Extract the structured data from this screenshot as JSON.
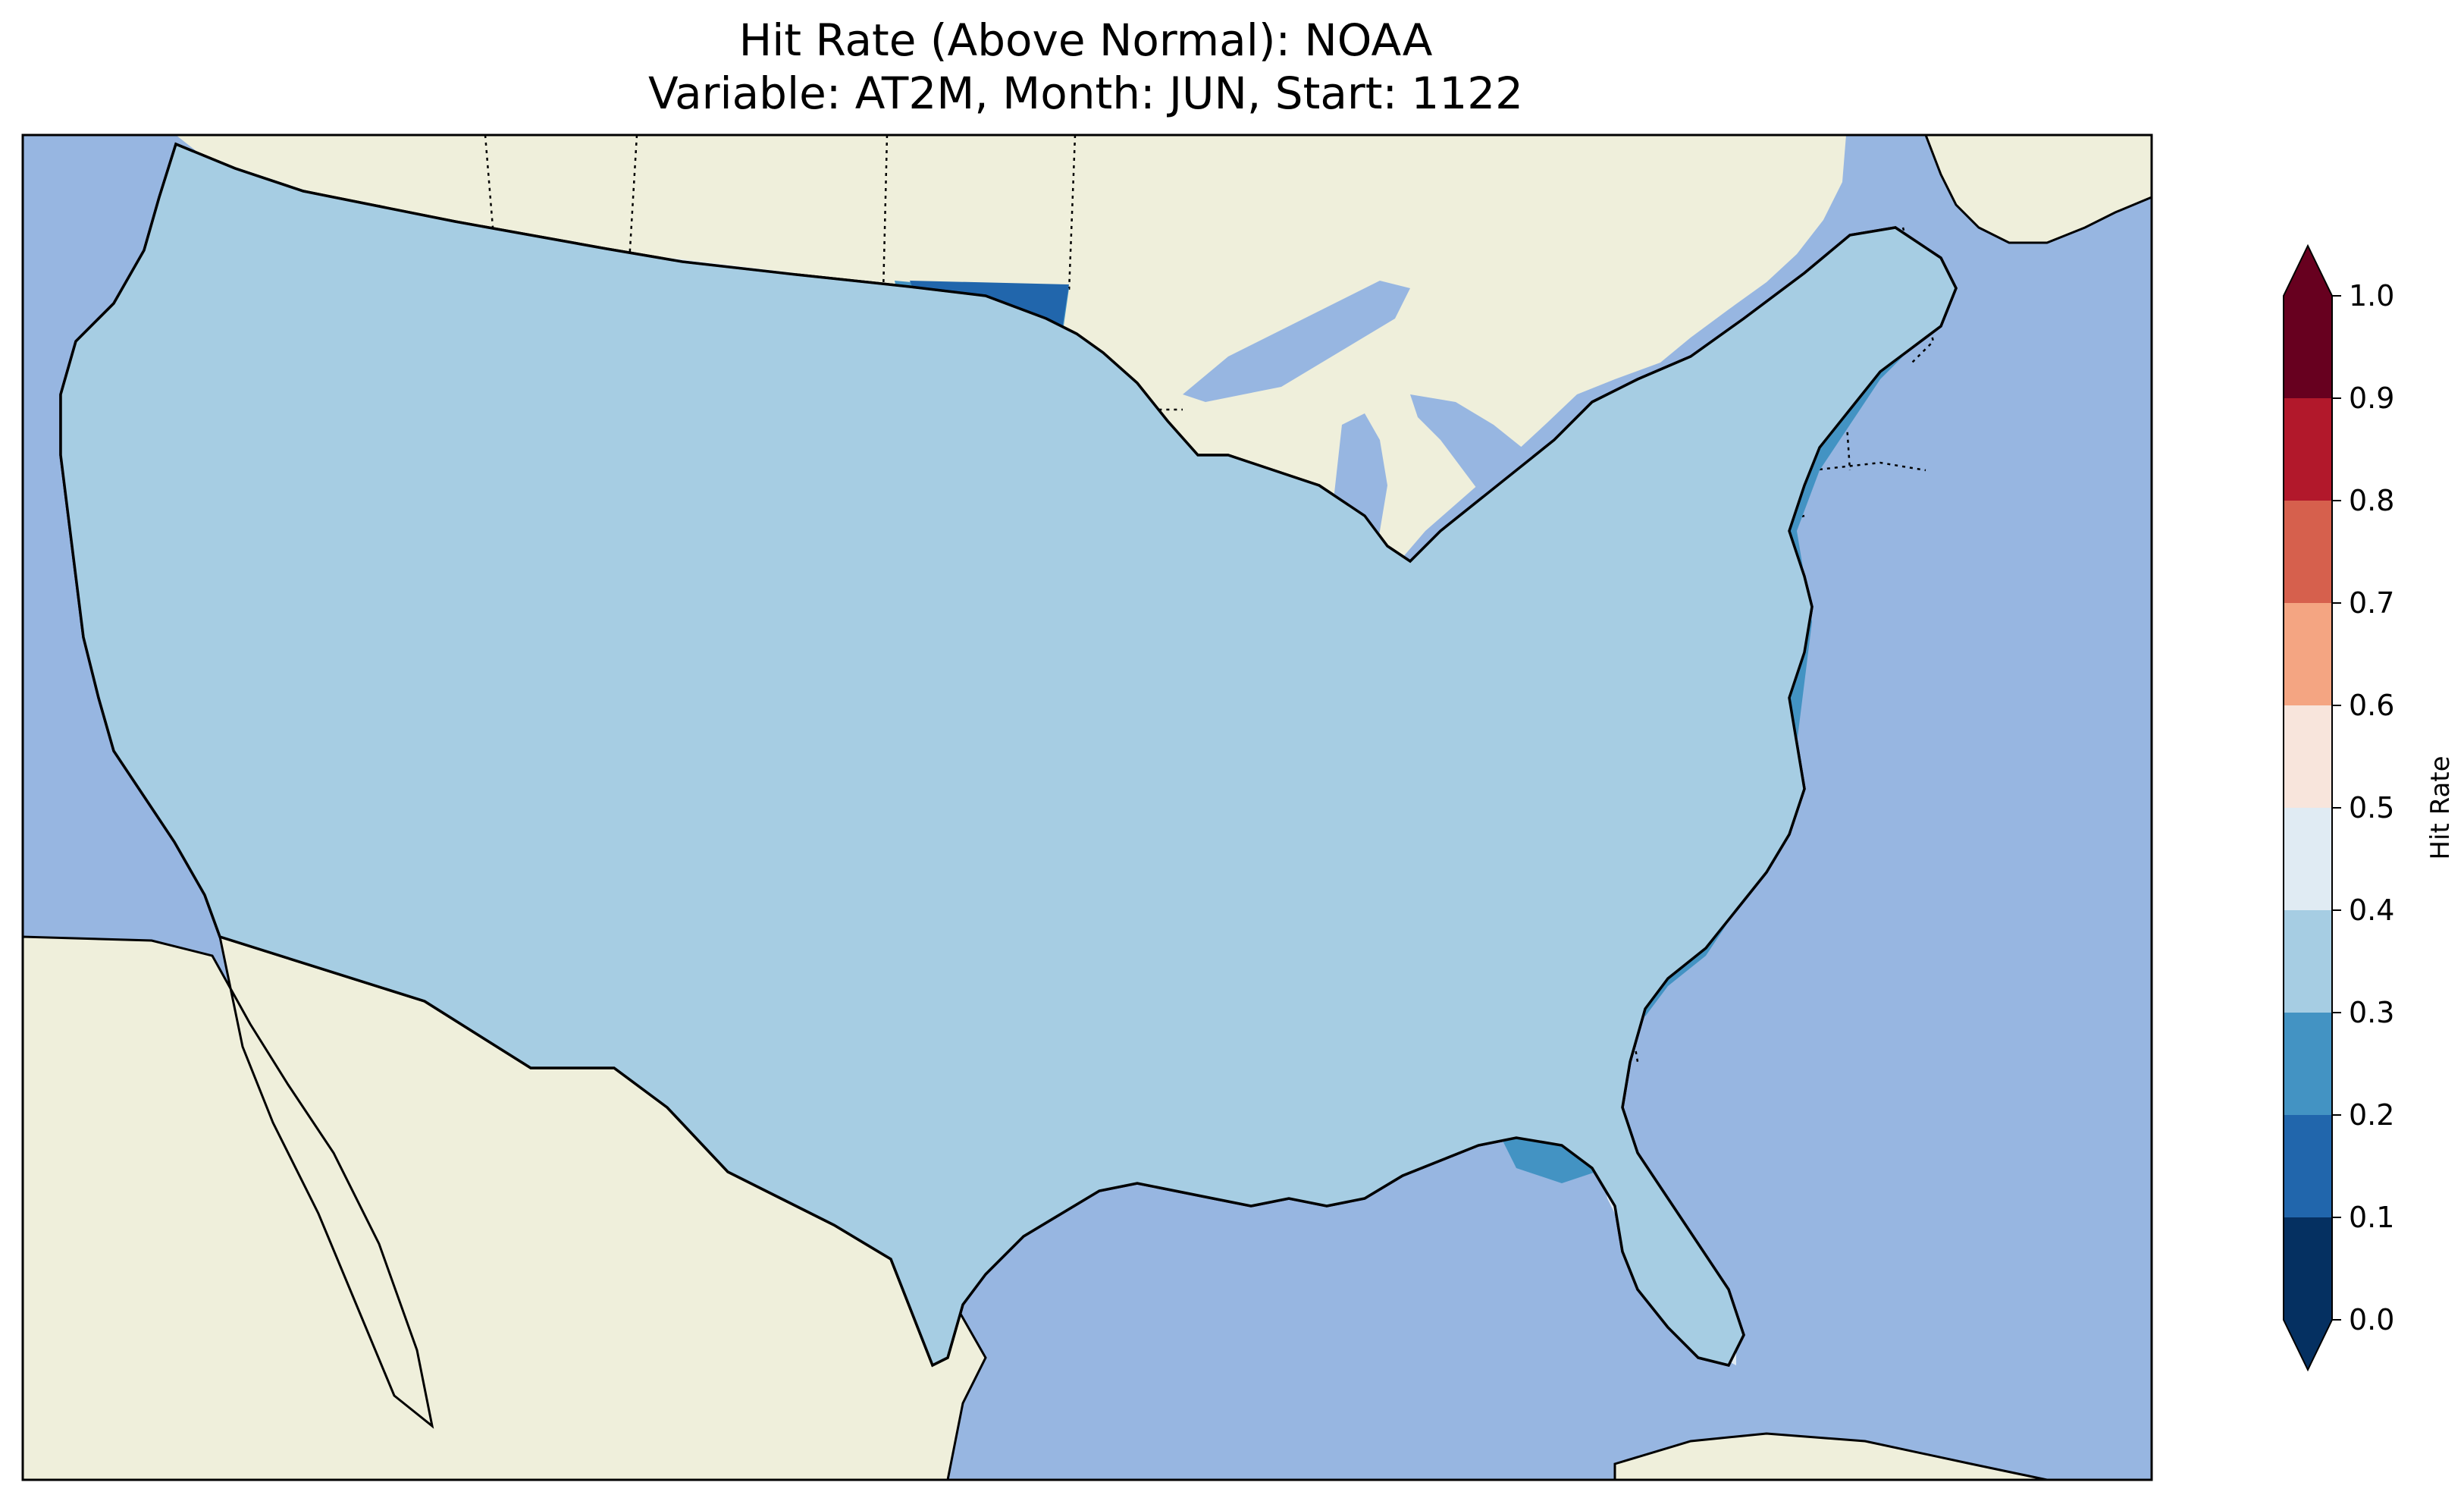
{
  "title": {
    "line1": "Hit Rate (Above Normal): NOAA",
    "line2": "Variable: AT2M, Month: JUN, Start: 1122"
  },
  "colors": {
    "ocean": "#97b6e1",
    "land": "#efefdb",
    "border": "#000000"
  },
  "colorbar": {
    "label": "Hit Rate",
    "ticks": [
      "0.0",
      "0.1",
      "0.2",
      "0.3",
      "0.4",
      "0.5",
      "0.6",
      "0.7",
      "0.8",
      "0.9",
      "1.0"
    ],
    "bins": [
      {
        "range": [
          0.0,
          0.1
        ],
        "color": "#053061"
      },
      {
        "range": [
          0.1,
          0.2
        ],
        "color": "#2166ac"
      },
      {
        "range": [
          0.2,
          0.3
        ],
        "color": "#4393c3"
      },
      {
        "range": [
          0.3,
          0.4
        ],
        "color": "#a6cde3"
      },
      {
        "range": [
          0.4,
          0.5
        ],
        "color": "#e0ebf3"
      },
      {
        "range": [
          0.5,
          0.6
        ],
        "color": "#f8e5dc"
      },
      {
        "range": [
          0.6,
          0.7
        ],
        "color": "#f4a582"
      },
      {
        "range": [
          0.7,
          0.8
        ],
        "color": "#d6604d"
      },
      {
        "range": [
          0.8,
          0.9
        ],
        "color": "#b2182b"
      },
      {
        "range": [
          0.9,
          1.0
        ],
        "color": "#67001f"
      }
    ],
    "extend": "both"
  }
}
